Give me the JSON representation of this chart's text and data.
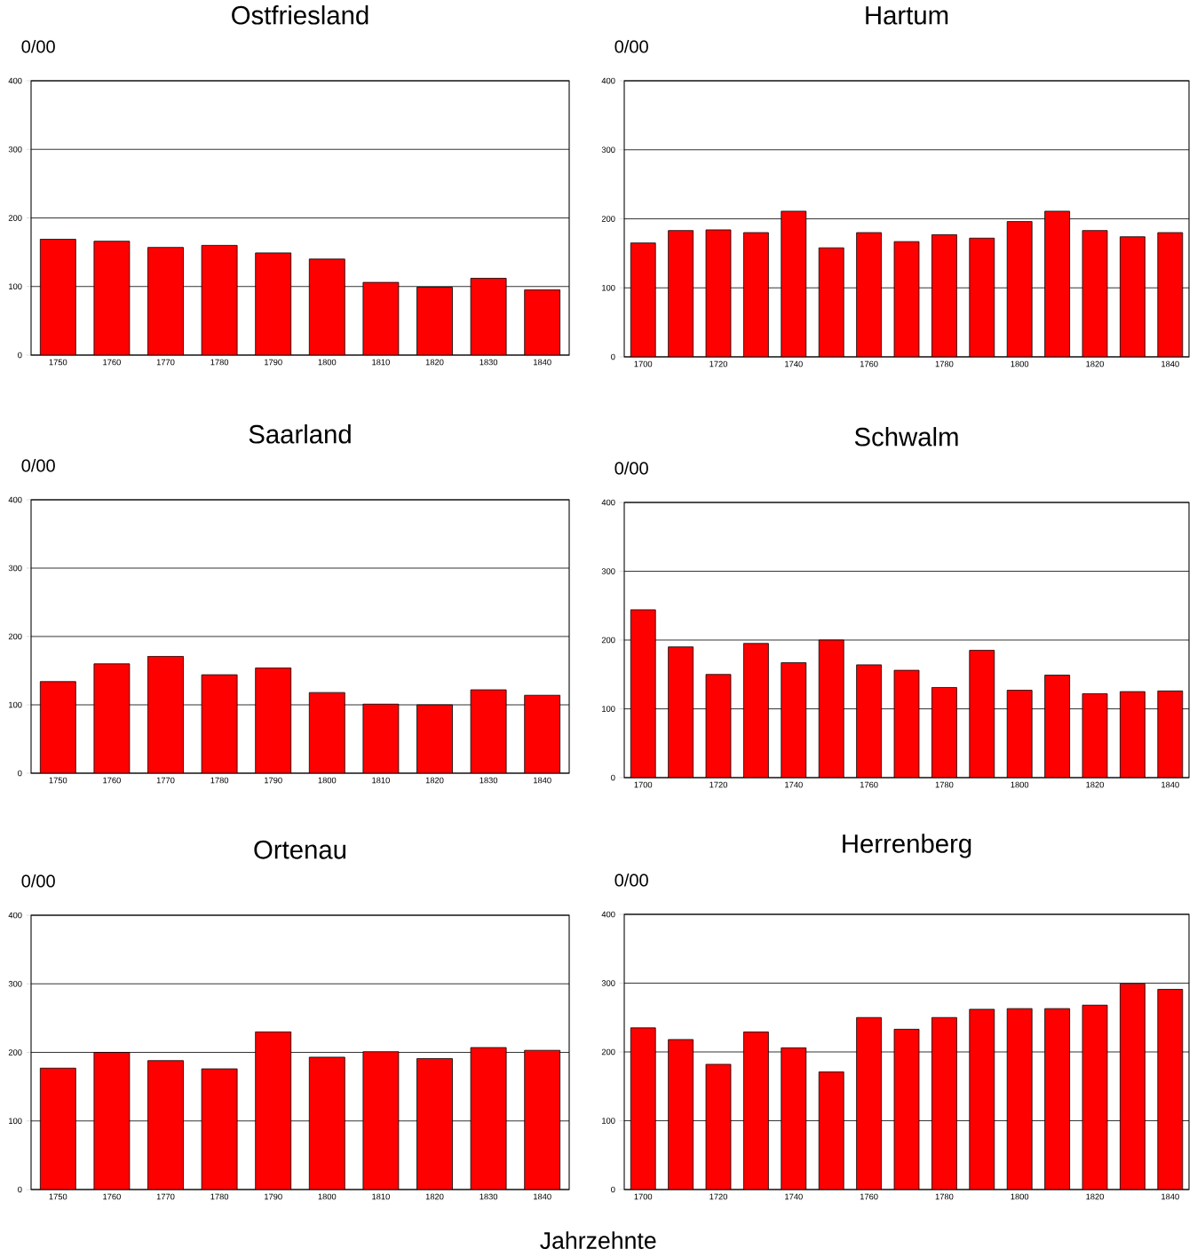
{
  "chart_data": [
    {
      "type": "bar",
      "title": "Ostfriesland",
      "ylabel": "0/00",
      "categories": [
        "1750",
        "1760",
        "1770",
        "1780",
        "1790",
        "1800",
        "1810",
        "1820",
        "1830",
        "1840"
      ],
      "values": [
        169,
        166,
        157,
        160,
        149,
        140,
        106,
        99,
        112,
        95
      ],
      "color": "#ff0000",
      "ylim": [
        0,
        400
      ],
      "yticks": [
        0,
        100,
        200,
        300,
        400
      ],
      "grid": "y"
    },
    {
      "type": "bar",
      "title": "Hartum",
      "ylabel": "0/00",
      "categories": [
        "1700",
        null,
        "1720",
        null,
        "1740",
        null,
        "1760",
        null,
        "1780",
        null,
        "1800",
        null,
        "1820",
        null,
        "1840"
      ],
      "values": [
        165,
        183,
        184,
        180,
        211,
        158,
        180,
        167,
        177,
        172,
        196,
        211,
        183,
        174,
        180
      ],
      "color": "#ff0000",
      "ylim": [
        0,
        400
      ],
      "yticks": [
        0,
        100,
        200,
        300,
        400
      ],
      "grid": "y"
    },
    {
      "type": "bar",
      "title": "Saarland",
      "ylabel": "0/00",
      "categories": [
        "1750",
        "1760",
        "1770",
        "1780",
        "1790",
        "1800",
        "1810",
        "1820",
        "1830",
        "1840"
      ],
      "values": [
        134,
        160,
        171,
        144,
        154,
        118,
        101,
        100,
        122,
        114
      ],
      "color": "#ff0000",
      "ylim": [
        0,
        400
      ],
      "yticks": [
        0,
        100,
        200,
        300,
        400
      ],
      "grid": "y"
    },
    {
      "type": "bar",
      "title": "Schwalm",
      "ylabel": "0/00",
      "categories": [
        "1700",
        null,
        "1720",
        null,
        "1740",
        null,
        "1760",
        null,
        "1780",
        null,
        "1800",
        null,
        "1820",
        null,
        "1840"
      ],
      "values": [
        244,
        190,
        150,
        195,
        167,
        200,
        164,
        156,
        131,
        185,
        127,
        149,
        122,
        125,
        126
      ],
      "color": "#ff0000",
      "ylim": [
        0,
        400
      ],
      "yticks": [
        0,
        100,
        200,
        300,
        400
      ],
      "grid": "y"
    },
    {
      "type": "bar",
      "title": "Ortenau",
      "ylabel": "0/00",
      "xlabel": "Jahrzehnte",
      "categories": [
        "1750",
        "1760",
        "1770",
        "1780",
        "1790",
        "1800",
        "1810",
        "1820",
        "1830",
        "1840"
      ],
      "values": [
        177,
        200,
        188,
        176,
        230,
        193,
        201,
        191,
        207,
        203
      ],
      "color": "#ff0000",
      "ylim": [
        0,
        400
      ],
      "yticks": [
        0,
        100,
        200,
        300,
        400
      ],
      "grid": "y"
    },
    {
      "type": "bar",
      "title": "Herrenberg",
      "ylabel": "0/00",
      "categories": [
        "1700",
        null,
        "1720",
        null,
        "1740",
        null,
        "1760",
        null,
        "1780",
        null,
        "1800",
        null,
        "1820",
        null,
        "1840"
      ],
      "values": [
        235,
        218,
        182,
        229,
        206,
        171,
        250,
        233,
        250,
        262,
        263,
        263,
        268,
        299,
        291
      ],
      "color": "#ff0000",
      "ylim": [
        0,
        400
      ],
      "yticks": [
        0,
        100,
        200,
        300,
        400
      ],
      "grid": "y"
    }
  ]
}
